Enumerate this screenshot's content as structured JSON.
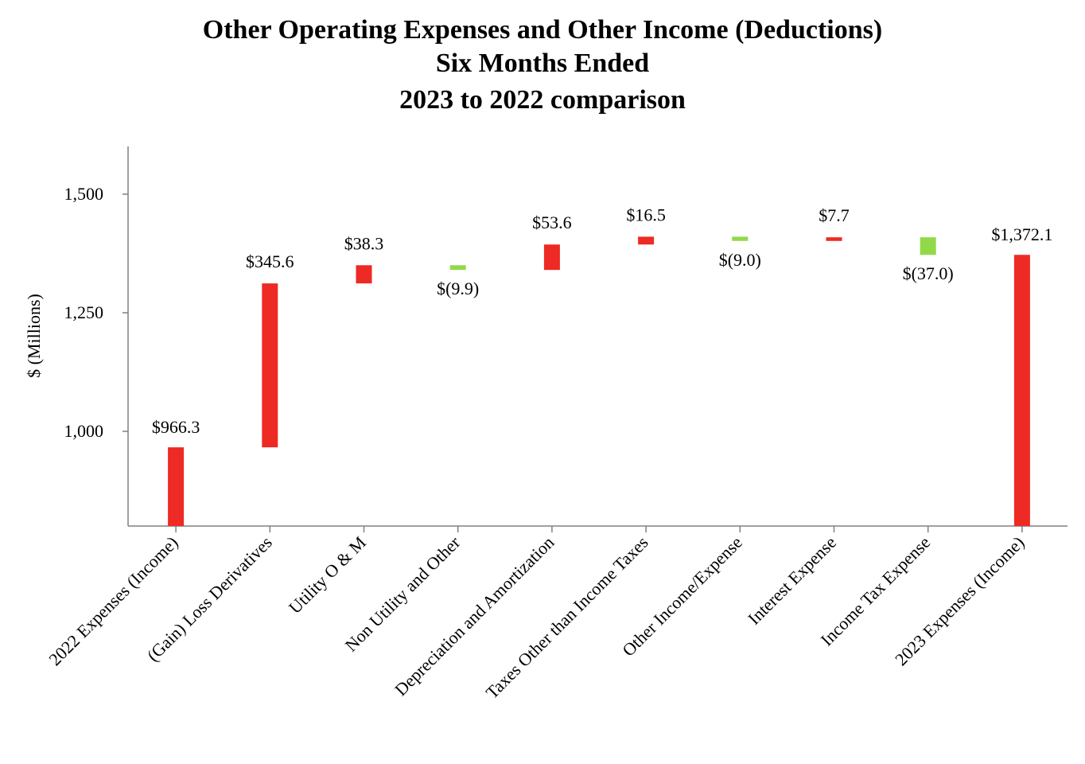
{
  "chart_data": {
    "type": "bar",
    "subtype": "waterfall",
    "title_lines": [
      "Other Operating Expenses and Other Income (Deductions)",
      "Six Months Ended",
      "2023 to 2022 comparison"
    ],
    "ylabel": "$ (Millions)",
    "xlabel": "",
    "ylim": [
      800,
      1600
    ],
    "yticks": [
      1000,
      1250,
      1500
    ],
    "ytick_labels": [
      "1,000",
      "1,250",
      "1,500"
    ],
    "grid": false,
    "legend": null,
    "colors": {
      "increase": "#ee2a24",
      "decrease": "#92d94a",
      "total": "#ee2a24",
      "axis": "#808080"
    },
    "categories": [
      "2022 Expenses (Income)",
      "(Gain) Loss Derivatives",
      "Utility O & M",
      "Non Utility and Other",
      "Depreciation and Amortization",
      "Taxes Other than Income Taxes",
      "Other Income/Expense",
      "Interest Expense",
      "Income Tax Expense",
      "2023 Expenses (Income)"
    ],
    "values": [
      966.3,
      345.6,
      38.3,
      -9.9,
      53.6,
      16.5,
      -9.0,
      7.7,
      -37.0,
      1372.1
    ],
    "kinds": [
      "total",
      "delta",
      "delta",
      "delta",
      "delta",
      "delta",
      "delta",
      "delta",
      "delta",
      "total"
    ],
    "value_labels": [
      "$966.3",
      "$345.6",
      "$38.3",
      "$(9.9)",
      "$53.6",
      "$16.5",
      "$(9.0)",
      "$7.7",
      "$(37.0)",
      "$1,372.1"
    ]
  }
}
